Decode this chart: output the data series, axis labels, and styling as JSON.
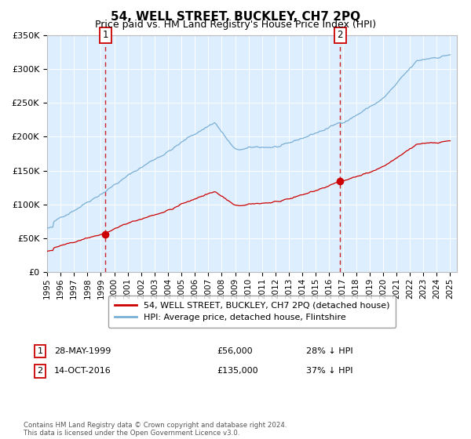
{
  "title": "54, WELL STREET, BUCKLEY, CH7 2PQ",
  "subtitle": "Price paid vs. HM Land Registry's House Price Index (HPI)",
  "legend_line1": "54, WELL STREET, BUCKLEY, CH7 2PQ (detached house)",
  "legend_line2": "HPI: Average price, detached house, Flintshire",
  "transaction1_date": "28-MAY-1999",
  "transaction1_price": 56000,
  "transaction1_label": "28% ↓ HPI",
  "transaction2_date": "14-OCT-2016",
  "transaction2_price": 135000,
  "transaction2_label": "37% ↓ HPI",
  "footnote": "Contains HM Land Registry data © Crown copyright and database right 2024.\nThis data is licensed under the Open Government Licence v3.0.",
  "red_color": "#cc0000",
  "blue_color": "#7aafd4",
  "bg_color": "#ddeeff",
  "ylim": [
    0,
    350000
  ],
  "yticks": [
    0,
    50000,
    100000,
    150000,
    200000,
    250000,
    300000,
    350000
  ],
  "xlim_start": 1995.0,
  "xlim_end": 2025.5,
  "t1_year": 1999.37,
  "t2_year": 2016.79,
  "t1_price": 56000,
  "t2_price": 135000
}
